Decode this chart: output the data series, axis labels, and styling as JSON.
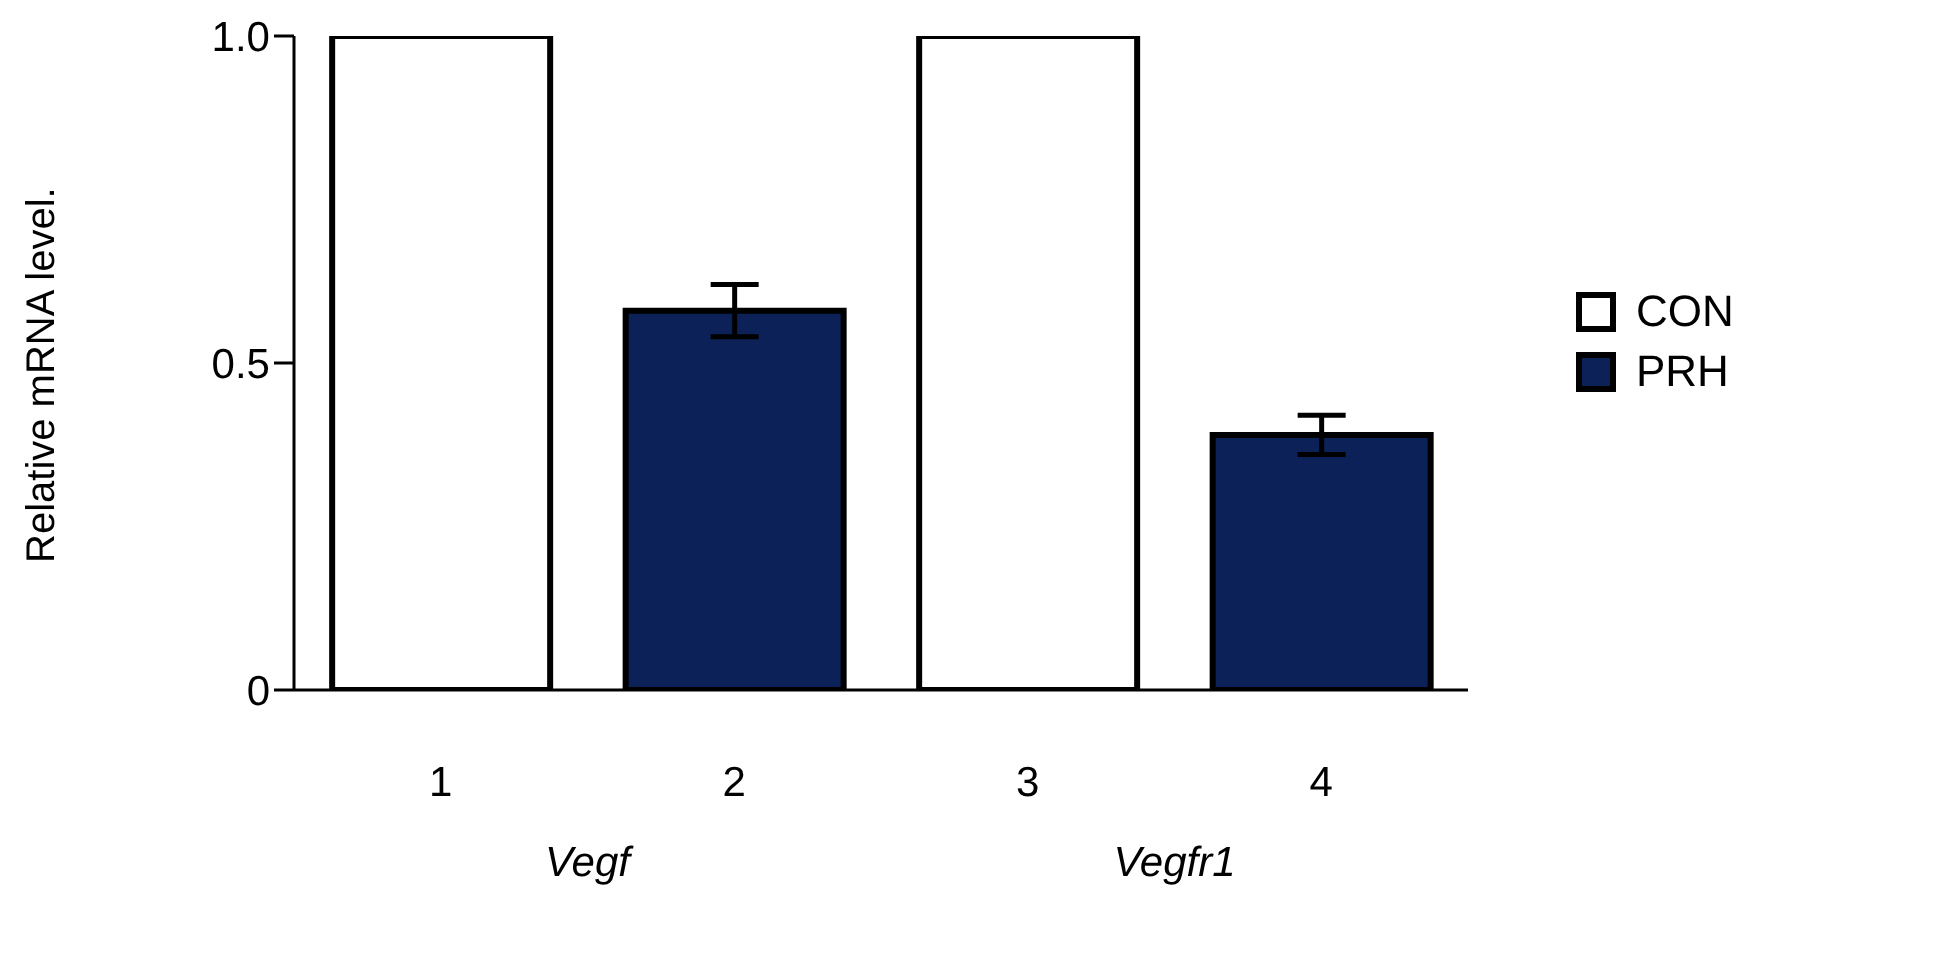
{
  "chart_data": {
    "type": "bar",
    "ylabel": "Relative mRNA level.",
    "categories": [
      "1",
      "2",
      "3",
      "4"
    ],
    "series": [
      {
        "name": "CON",
        "color": "#ffffff",
        "values": [
          1.0,
          null,
          1.0,
          null
        ]
      },
      {
        "name": "PRH",
        "color": "#0b2157",
        "values": [
          null,
          0.58,
          null,
          0.39
        ],
        "errors": [
          null,
          0.04,
          null,
          0.03
        ]
      }
    ],
    "ylim": [
      0,
      1
    ],
    "yticks": [
      0,
      0.5,
      {
        "value": 1,
        "label": "1.0"
      }
    ],
    "grid": false,
    "legend": "right",
    "annotations": [
      "Vegf",
      "Vegfr1"
    ]
  }
}
